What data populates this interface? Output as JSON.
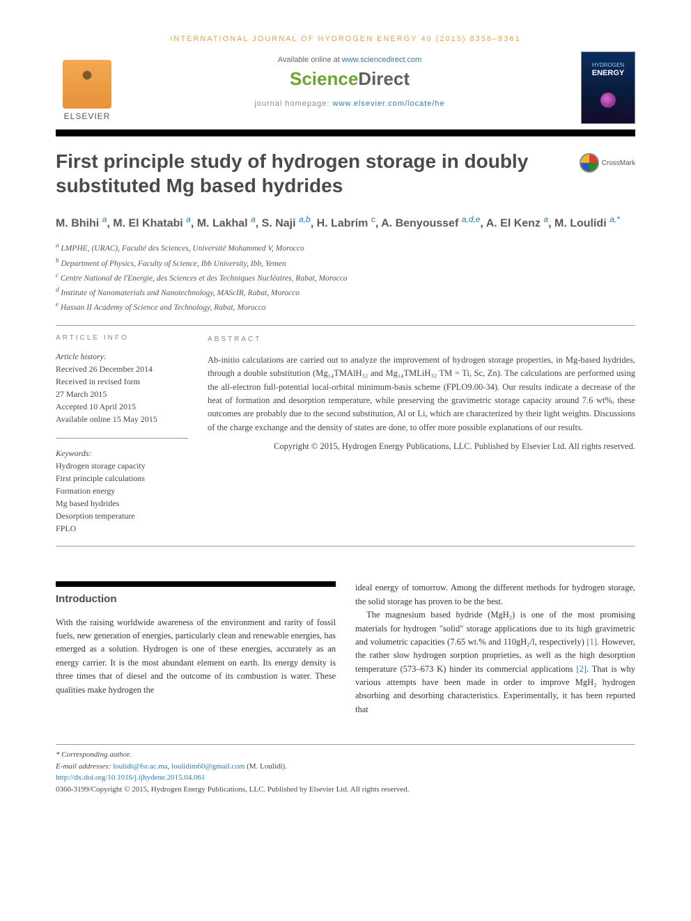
{
  "journal_header": "INTERNATIONAL JOURNAL OF HYDROGEN ENERGY 40 (2015) 8356–8361",
  "available_prefix": "Available online at ",
  "available_link": "www.sciencedirect.com",
  "sd_logo_left": "Science",
  "sd_logo_right": "Direct",
  "homepage_prefix": "journal homepage: ",
  "homepage_link": "www.elsevier.com/locate/he",
  "elsevier_label": "ELSEVIER",
  "cover": {
    "line1": "HYDROGEN",
    "line2": "ENERGY"
  },
  "crossmark_label": "CrossMark",
  "title": "First principle study of hydrogen storage in doubly substituted Mg based hydrides",
  "authors_html": "M. Bhihi <span class='aff'>a</span>, M. El Khatabi <span class='aff'>a</span>, M. Lakhal <span class='aff'>a</span>, S. Naji <span class='aff'>a,b</span>, H. Labrim <span class='aff'>c</span>, A. Benyoussef <span class='aff'>a,d,e</span>, A. El Kenz <span class='aff'>a</span>, M. Loulidi <span class='aff'>a,*</span>",
  "affiliations": [
    "a LMPHE, (URAC), Faculté des Sciences, Université Mohammed V, Morocco",
    "b Department of Physics, Faculty of Science, Ibb University, Ibb, Yemen",
    "c Centre National de l'Energie, des Sciences et des Techniques Nucléaires, Rabat, Morocco",
    "d Institute of Nanomaterials and Nanotechnology, MAScIR, Rabat, Morocco",
    "e Hassan II Academy of Science and Technology, Rabat, Morocco"
  ],
  "info_label": "ARTICLE INFO",
  "abstract_label": "ABSTRACT",
  "history_label": "Article history:",
  "history": [
    "Received 26 December 2014",
    "Received in revised form",
    "27 March 2015",
    "Accepted 10 April 2015",
    "Available online 15 May 2015"
  ],
  "keywords_label": "Keywords:",
  "keywords": [
    "Hydrogen storage capacity",
    "First principle calculations",
    "Formation energy",
    "Mg based hydrides",
    "Desorption temperature",
    "FPLO"
  ],
  "abstract_text": "Ab-initio calculations are carried out to analyze the improvement of hydrogen storage properties, in Mg-based hydrides, through a double substitution (Mg₁₄TMAlH₃₂ and Mg₁₄TMLiH₃₂ TM = Ti, Sc, Zn). The calculations are performed using the all-electron full-potential local-orbital minimum-basis scheme (FPLO9.00-34). Our results indicate a decrease of the heat of formation and desorption temperature, while preserving the gravimetric storage capacity around 7.6 wt%, these outcomes are probably due to the second substitution, Al or Li, which are characterized by their light weights. Discussions of the charge exchange and the density of states are done, to offer more possible explanations of our results.",
  "copyright_text": "Copyright © 2015, Hydrogen Energy Publications, LLC. Published by Elsevier Ltd. All rights reserved.",
  "intro_heading": "Introduction",
  "col1_p1": "With the raising worldwide awareness of the environment and rarity of fossil fuels, new generation of energies, particularly clean and renewable energies, has emerged as a solution. Hydrogen is one of these energies, accurately as an energy carrier. It is the most abundant element on earth. Its energy density is three times that of diesel and the outcome of its combustion is water. These qualities make hydrogen the",
  "col2_p1": "ideal energy of tomorrow. Among the different methods for hydrogen storage, the solid storage has proven to be the best.",
  "col2_p2_a": "The magnesium based hydride (MgH₂) is one of the most promising materials for hydrogen \"solid\" storage applications due to its high gravimetric and volumetric capacities (7.65 wt.% and 110gH₂/l, respectively) ",
  "col2_ref1": "[1]",
  "col2_p2_b": ". However, the rather slow hydrogen sorption proprieties, as well as the high desorption temperature (573–673 K) hinder its commercial applications ",
  "col2_ref2": "[2]",
  "col2_p2_c": ". That is why various attempts have been made in order to improve MgH₂ hydrogen absorbing and desorbing characteristics. Experimentally, it has been reported that",
  "footer": {
    "corr": "* Corresponding author.",
    "email_label": "E-mail addresses: ",
    "email1": "loulidi@fsr.ac.ma",
    "email_sep": ", ",
    "email2": "loulidim60@gmail.com",
    "email_tail": " (M. Loulidi).",
    "doi": "http://dx.doi.org/10.1016/j.ijhydene.2015.04.061",
    "issn": "0360-3199/Copyright © 2015, Hydrogen Energy Publications, LLC. Published by Elsevier Ltd. All rights reserved."
  },
  "colors": {
    "link": "#2a7ab9",
    "accent": "#e8a04d",
    "title_gray": "#4a4a4a"
  }
}
